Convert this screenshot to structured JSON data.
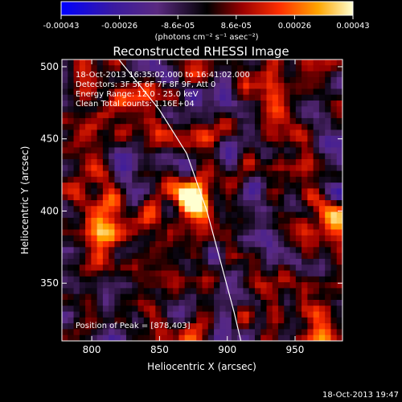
{
  "colorbar": {
    "ticks": [
      "-0.00043",
      "-0.00026",
      "-8.6e-05",
      "8.6e-05",
      "0.00026",
      "0.00043"
    ],
    "unit_label": "(photons cm⁻² s⁻¹ asec⁻²)"
  },
  "chart_data": {
    "type": "heatmap",
    "title": "Reconstructed RHESSI Image",
    "xlabel": "Heliocentric X (arcsec)",
    "ylabel": "Heliocentric Y (arcsec)",
    "xlim": [
      778,
      985
    ],
    "ylim": [
      310,
      505
    ],
    "x_ticks": [
      "800",
      "850",
      "900",
      "950"
    ],
    "x_tick_values": [
      800,
      850,
      900,
      950
    ],
    "y_ticks": [
      "350",
      "400",
      "450",
      "500"
    ],
    "y_tick_values": [
      350,
      400,
      450,
      500
    ],
    "zlim": [
      -0.00043,
      0.00043
    ],
    "colormap": [
      "#0000ff",
      "#4b0082",
      "#8b0000",
      "#ff3000",
      "#ffa000",
      "#ffff80",
      "#ffffff"
    ],
    "info_lines": [
      "18-Oct-2013 16:35:02.000 to 16:41:02.000",
      "Detectors: 3F 5F 6F 7F 8F 9F, Att 0",
      "Energy Range: 12.0 - 25.0 keV",
      "Clean    Total counts: 1.16E+04"
    ],
    "peak_label": "Position of Peak = [878,403]",
    "peak": {
      "x": 878,
      "y": 403
    },
    "limb_points": [
      [
        820,
        505
      ],
      [
        850,
        470
      ],
      [
        870,
        440
      ],
      [
        885,
        400
      ],
      [
        895,
        365
      ],
      [
        905,
        330
      ],
      [
        910,
        310
      ]
    ]
  },
  "timestamp": "18-Oct-2013 19:47"
}
